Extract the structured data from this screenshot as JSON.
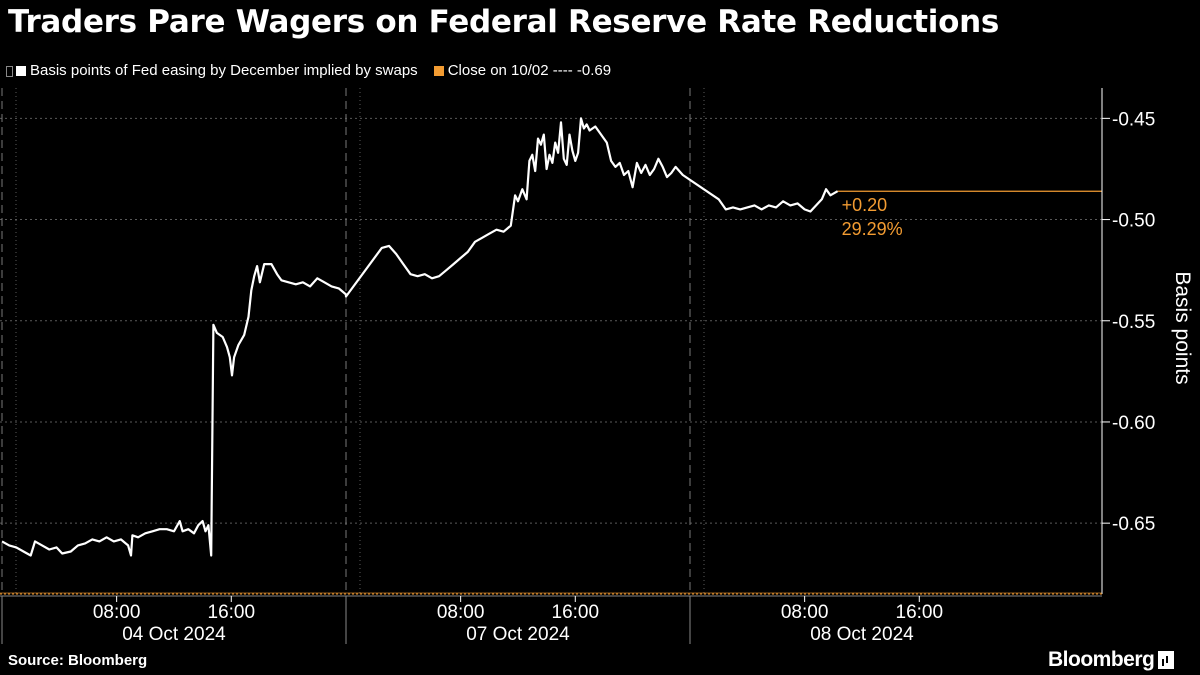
{
  "title": "Traders Pare Wagers on Federal Reserve Rate Reductions",
  "legend": {
    "series_label": "Basis points of Fed easing by December implied by swaps",
    "series_color": "#ffffff",
    "close_label": "Close on 10/02 ---- -0.69",
    "close_color": "#f39c32",
    "drag_icon": "drag-handle-icon"
  },
  "annotation": {
    "change": "+0.20",
    "pct": "29.29%"
  },
  "footer": {
    "source": "Source: Bloomberg",
    "brand": "Bloomberg",
    "brand_icon": "bloomberg-terminal-icon"
  },
  "chart_data": {
    "type": "line",
    "title": "Traders Pare Wagers on Federal Reserve Rate Reductions",
    "xlabel": "",
    "ylabel": "Basis points",
    "ylim": [
      -0.685,
      -0.435
    ],
    "yticks": [
      -0.45,
      -0.5,
      -0.55,
      -0.6,
      -0.65
    ],
    "ytick_labels": [
      "-0.45",
      "-0.50",
      "-0.55",
      "-0.60",
      "-0.65"
    ],
    "axis_side": "right",
    "grid": true,
    "x_units": "hours since 00:00 on each trading day",
    "days": [
      {
        "date": "04 Oct 2024",
        "start": "00:00",
        "end": "24:00"
      },
      {
        "date": "07 Oct 2024",
        "start": "00:00",
        "end": "24:00"
      },
      {
        "date": "08 Oct 2024",
        "start": "00:00",
        "end": "24:00"
      }
    ],
    "xticks": [
      {
        "day": 0,
        "hour": 8,
        "label": "08:00"
      },
      {
        "day": 0,
        "hour": 16,
        "label": "16:00"
      },
      {
        "day": 1,
        "hour": 8,
        "label": "08:00"
      },
      {
        "day": 1,
        "hour": 16,
        "label": "16:00"
      },
      {
        "day": 2,
        "hour": 8,
        "label": "08:00"
      },
      {
        "day": 2,
        "hour": 16,
        "label": "16:00"
      }
    ],
    "series": [
      {
        "name": "Basis points of Fed easing by December implied by swaps",
        "color": "#ffffff",
        "points": [
          [
            0,
            0.0,
            -0.659
          ],
          [
            0,
            0.5,
            -0.661
          ],
          [
            0,
            1.0,
            -0.662
          ],
          [
            0,
            1.5,
            -0.664
          ],
          [
            0,
            2.0,
            -0.666
          ],
          [
            0,
            2.3,
            -0.659
          ],
          [
            0,
            2.8,
            -0.661
          ],
          [
            0,
            3.3,
            -0.663
          ],
          [
            0,
            3.8,
            -0.662
          ],
          [
            0,
            4.2,
            -0.665
          ],
          [
            0,
            4.8,
            -0.664
          ],
          [
            0,
            5.3,
            -0.661
          ],
          [
            0,
            5.8,
            -0.66
          ],
          [
            0,
            6.3,
            -0.658
          ],
          [
            0,
            6.8,
            -0.659
          ],
          [
            0,
            7.3,
            -0.657
          ],
          [
            0,
            7.8,
            -0.659
          ],
          [
            0,
            8.3,
            -0.658
          ],
          [
            0,
            8.8,
            -0.661
          ],
          [
            0,
            9.0,
            -0.666
          ],
          [
            0,
            9.1,
            -0.656
          ],
          [
            0,
            9.5,
            -0.657
          ],
          [
            0,
            10.0,
            -0.655
          ],
          [
            0,
            10.5,
            -0.654
          ],
          [
            0,
            11.0,
            -0.653
          ],
          [
            0,
            11.5,
            -0.653
          ],
          [
            0,
            12.0,
            -0.654
          ],
          [
            0,
            12.4,
            -0.649
          ],
          [
            0,
            12.6,
            -0.654
          ],
          [
            0,
            13.0,
            -0.653
          ],
          [
            0,
            13.4,
            -0.655
          ],
          [
            0,
            13.7,
            -0.651
          ],
          [
            0,
            14.0,
            -0.649
          ],
          [
            0,
            14.2,
            -0.654
          ],
          [
            0,
            14.4,
            -0.651
          ],
          [
            0,
            14.6,
            -0.666
          ],
          [
            0,
            14.75,
            -0.552
          ],
          [
            0,
            15.0,
            -0.556
          ],
          [
            0,
            15.4,
            -0.558
          ],
          [
            0,
            15.7,
            -0.563
          ],
          [
            0,
            15.9,
            -0.568
          ],
          [
            0,
            16.05,
            -0.577
          ],
          [
            0,
            16.2,
            -0.568
          ],
          [
            0,
            16.5,
            -0.562
          ],
          [
            0,
            16.9,
            -0.557
          ],
          [
            0,
            17.2,
            -0.548
          ],
          [
            0,
            17.4,
            -0.535
          ],
          [
            0,
            17.6,
            -0.528
          ],
          [
            0,
            17.8,
            -0.523
          ],
          [
            0,
            18.0,
            -0.531
          ],
          [
            0,
            18.3,
            -0.522
          ],
          [
            0,
            18.8,
            -0.522
          ],
          [
            0,
            19.2,
            -0.527
          ],
          [
            0,
            19.5,
            -0.53
          ],
          [
            0,
            20.0,
            -0.531
          ],
          [
            0,
            20.5,
            -0.532
          ],
          [
            0,
            21.0,
            -0.531
          ],
          [
            0,
            21.5,
            -0.533
          ],
          [
            0,
            22.0,
            -0.529
          ],
          [
            0,
            22.5,
            -0.531
          ],
          [
            0,
            23.0,
            -0.533
          ],
          [
            0,
            23.5,
            -0.534
          ],
          [
            0,
            24.0,
            -0.537
          ],
          [
            1,
            0.0,
            -0.538
          ],
          [
            1,
            2.5,
            -0.514
          ],
          [
            1,
            3.0,
            -0.513
          ],
          [
            1,
            3.5,
            -0.517
          ],
          [
            1,
            4.0,
            -0.522
          ],
          [
            1,
            4.5,
            -0.527
          ],
          [
            1,
            5.0,
            -0.528
          ],
          [
            1,
            5.5,
            -0.527
          ],
          [
            1,
            6.0,
            -0.529
          ],
          [
            1,
            6.5,
            -0.528
          ],
          [
            1,
            7.0,
            -0.525
          ],
          [
            1,
            7.5,
            -0.522
          ],
          [
            1,
            8.0,
            -0.519
          ],
          [
            1,
            8.5,
            -0.516
          ],
          [
            1,
            9.0,
            -0.511
          ],
          [
            1,
            9.5,
            -0.509
          ],
          [
            1,
            10.0,
            -0.507
          ],
          [
            1,
            10.5,
            -0.505
          ],
          [
            1,
            11.0,
            -0.506
          ],
          [
            1,
            11.5,
            -0.503
          ],
          [
            1,
            11.8,
            -0.488
          ],
          [
            1,
            12.0,
            -0.491
          ],
          [
            1,
            12.3,
            -0.485
          ],
          [
            1,
            12.6,
            -0.49
          ],
          [
            1,
            12.8,
            -0.471
          ],
          [
            1,
            13.0,
            -0.468
          ],
          [
            1,
            13.2,
            -0.476
          ],
          [
            1,
            13.4,
            -0.46
          ],
          [
            1,
            13.6,
            -0.463
          ],
          [
            1,
            13.8,
            -0.458
          ],
          [
            1,
            14.0,
            -0.475
          ],
          [
            1,
            14.2,
            -0.468
          ],
          [
            1,
            14.4,
            -0.472
          ],
          [
            1,
            14.6,
            -0.462
          ],
          [
            1,
            14.8,
            -0.467
          ],
          [
            1,
            15.0,
            -0.452
          ],
          [
            1,
            15.2,
            -0.47
          ],
          [
            1,
            15.4,
            -0.473
          ],
          [
            1,
            15.6,
            -0.458
          ],
          [
            1,
            15.8,
            -0.466
          ],
          [
            1,
            16.0,
            -0.471
          ],
          [
            1,
            16.2,
            -0.467
          ],
          [
            1,
            16.4,
            -0.45
          ],
          [
            1,
            16.6,
            -0.455
          ],
          [
            1,
            16.8,
            -0.453
          ],
          [
            1,
            17.0,
            -0.456
          ],
          [
            1,
            17.4,
            -0.454
          ],
          [
            1,
            17.8,
            -0.458
          ],
          [
            1,
            18.2,
            -0.462
          ],
          [
            1,
            18.5,
            -0.471
          ],
          [
            1,
            18.8,
            -0.474
          ],
          [
            1,
            19.1,
            -0.472
          ],
          [
            1,
            19.4,
            -0.478
          ],
          [
            1,
            19.7,
            -0.476
          ],
          [
            1,
            20.0,
            -0.484
          ],
          [
            1,
            20.3,
            -0.472
          ],
          [
            1,
            20.6,
            -0.477
          ],
          [
            1,
            20.9,
            -0.473
          ],
          [
            1,
            21.2,
            -0.478
          ],
          [
            1,
            21.5,
            -0.475
          ],
          [
            1,
            21.8,
            -0.47
          ],
          [
            1,
            22.1,
            -0.474
          ],
          [
            1,
            22.4,
            -0.479
          ],
          [
            1,
            22.7,
            -0.477
          ],
          [
            1,
            23.0,
            -0.474
          ],
          [
            1,
            23.5,
            -0.478
          ],
          [
            2,
            2.0,
            -0.49
          ],
          [
            2,
            2.5,
            -0.495
          ],
          [
            2,
            3.0,
            -0.494
          ],
          [
            2,
            3.5,
            -0.495
          ],
          [
            2,
            4.0,
            -0.494
          ],
          [
            2,
            4.5,
            -0.493
          ],
          [
            2,
            5.0,
            -0.495
          ],
          [
            2,
            5.5,
            -0.493
          ],
          [
            2,
            6.0,
            -0.494
          ],
          [
            2,
            6.5,
            -0.491
          ],
          [
            2,
            7.0,
            -0.493
          ],
          [
            2,
            7.5,
            -0.492
          ],
          [
            2,
            8.0,
            -0.495
          ],
          [
            2,
            8.4,
            -0.496
          ],
          [
            2,
            8.8,
            -0.493
          ],
          [
            2,
            9.2,
            -0.49
          ],
          [
            2,
            9.5,
            -0.485
          ],
          [
            2,
            9.8,
            -0.488
          ],
          [
            2,
            10.3,
            -0.486
          ]
        ]
      }
    ],
    "reference_line": {
      "label": "Close on 10/02",
      "value": -0.69,
      "color": "#f39c32"
    },
    "current_marker": {
      "value": -0.486,
      "color": "#f39c32"
    },
    "annotations": [
      "+0.20",
      "29.29%"
    ]
  }
}
